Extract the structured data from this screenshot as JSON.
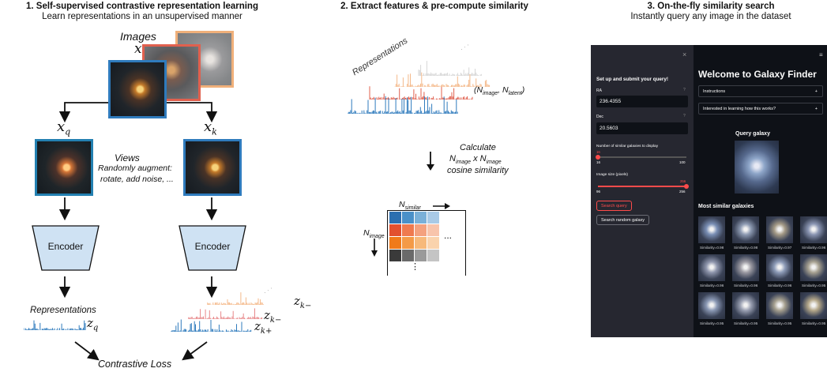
{
  "section1": {
    "title": "1. Self-supervised contrastive representation learning",
    "subtitle": "Learn representations in an unsupervised manner",
    "images_label": "Images",
    "x_label": "x",
    "xq_label": "x",
    "xq_sub": "q",
    "xk_label": "x",
    "xk_sub": "k",
    "views_label": "Views",
    "views_desc_1": "Randomly augment:",
    "views_desc_2": "rotate, add noise, ...",
    "encoder_left": "Encoder",
    "encoder_right": "Encoder",
    "representations_label": "Representations",
    "zq": "z",
    "zq_sub": "q",
    "zk_minus_1": "z",
    "zk_minus_1_sub": "k−",
    "zk_minus_2": "z",
    "zk_minus_2_sub": "k−",
    "zk_plus": "z",
    "zk_plus_sub": "k+",
    "dots": "· · ·",
    "loss_label": "Contrastive Loss"
  },
  "section2": {
    "title": "2. Extract features & pre-compute similarity",
    "representations_label": "Representations",
    "dots": "· · ·",
    "shape_open": "(N",
    "shape_image_sub": "image",
    "shape_sep": ", N",
    "shape_latent_sub": "latent",
    "shape_close": ")",
    "calc_1": "Calculate",
    "calc_2a": "N",
    "calc_2_sub1": "image",
    "calc_2b": " x N",
    "calc_2_sub2": "image",
    "calc_3": "cosine similarity",
    "nsimilar": "N",
    "nsimilar_sub": "similar",
    "nimage": "N",
    "nimage_sub": "image",
    "matrix_hdots": "...",
    "matrix_vdots": "⋮",
    "matrix_colors": [
      "#2b6fb0",
      "#4a90c8",
      "#7ab0d8",
      "#a9cae6",
      "#e2502f",
      "#ef7a4f",
      "#f4a17e",
      "#f8c4ab",
      "#f07a1a",
      "#f49a47",
      "#f7b97a",
      "#fad3ad",
      "#3a3a3a",
      "#6a6a6a",
      "#9a9a9a",
      "#c4c4c4"
    ]
  },
  "section3": {
    "title": "3. On-the-fly similarity search",
    "subtitle": "Instantly query any image in the dataset"
  },
  "app": {
    "close_icon": "×",
    "menu_icon": "≡",
    "sidebar_heading": "Set up and submit your query!",
    "ra_label": "RA",
    "ra_value": "236.4355",
    "dec_label": "Dec",
    "dec_value": "20.5603",
    "help_icon": "?",
    "num_label": "Number of similar galaxies to display",
    "num_value": "16",
    "num_min": "16",
    "num_max": "100",
    "num_fraction": 0.0,
    "size_label": "Image size (pixels)",
    "size_value": "256",
    "size_min": "96",
    "size_max": "256",
    "size_fraction": 1.0,
    "search_query_button": "Search query",
    "search_random_button": "Search random galaxy",
    "main_title": "Welcome to Galaxy Finder",
    "expander_instructions": "Instructions",
    "expander_learn": "Interested in learning how this works?",
    "expander_icon": "+",
    "query_heading": "Query galaxy",
    "similar_heading": "Most similar galaxies",
    "similarities": [
      "Similarity=0.98",
      "Similarity=0.98",
      "Similarity=0.97",
      "Similarity=0.96",
      "Similarity=0.96",
      "Similarity=0.96",
      "Similarity=0.96",
      "Similarity=0.95",
      "Similarity=0.95",
      "Similarity=0.95",
      "Similarity=0.95",
      "Similarity=0.95"
    ]
  }
}
